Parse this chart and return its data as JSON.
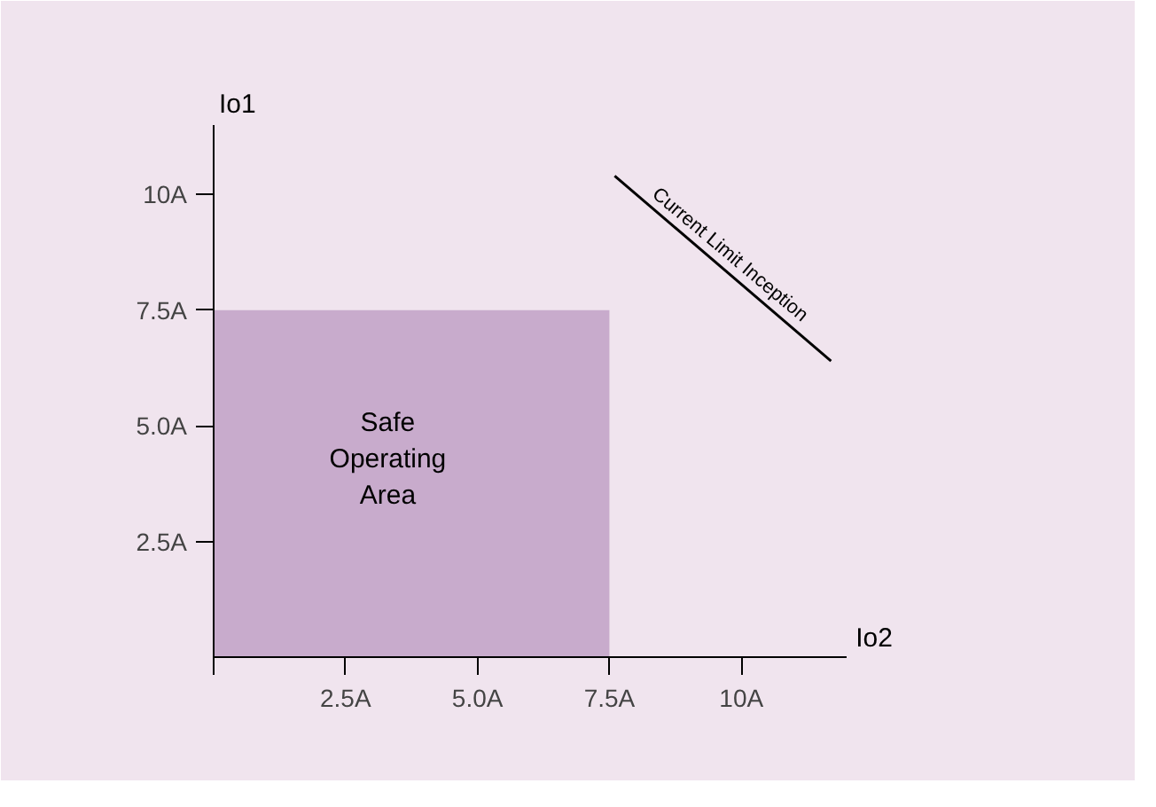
{
  "chart_data": {
    "type": "area",
    "xlabel": "Io2",
    "ylabel": "Io1",
    "x": [
      0,
      7.5
    ],
    "series": [
      {
        "color": "#c8abcc",
        "values": [
          7.5,
          7.5
        ]
      },
      {
        "type": "line",
        "color": "#000000",
        "x": [
          7.6,
          11.7
        ],
        "values": [
          10.4,
          6.4
        ]
      }
    ],
    "xlim": [
      0,
      12
    ],
    "ylim": [
      0,
      11.5
    ],
    "xticks": [
      {
        "value": 0,
        "label": null
      },
      {
        "value": 2.5,
        "label": "2.5A"
      },
      {
        "value": 5,
        "label": "5.0A"
      },
      {
        "value": 7.5,
        "label": "7.5A"
      },
      {
        "value": 10,
        "label": "10A"
      }
    ],
    "yticks": [
      {
        "value": 2.5,
        "label": "2.5A"
      },
      {
        "value": 5,
        "label": "5.0A"
      },
      {
        "value": 7.5,
        "label": "7.5A"
      },
      {
        "value": 10,
        "label": "10A"
      }
    ],
    "grid": false,
    "annotations": [
      "Safe\nOperating\nArea",
      "Current Limit Inception"
    ]
  }
}
